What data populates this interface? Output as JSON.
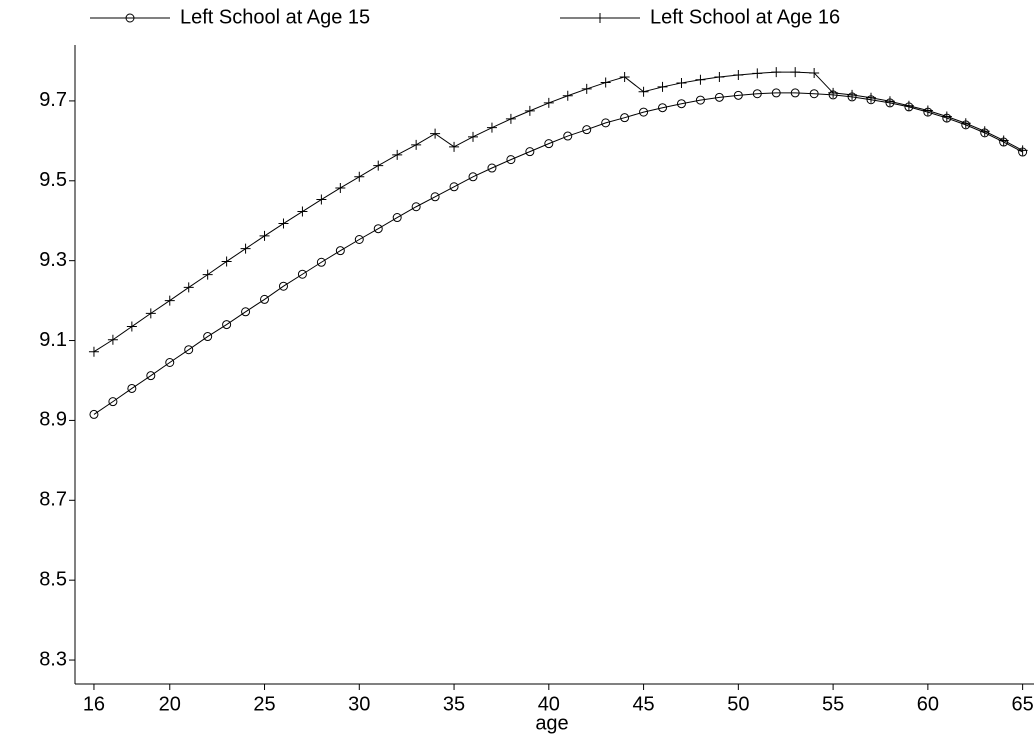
{
  "chart_data": {
    "type": "line",
    "xlabel": "age",
    "x": [
      16,
      17,
      18,
      19,
      20,
      21,
      22,
      23,
      24,
      25,
      26,
      27,
      28,
      29,
      30,
      31,
      32,
      33,
      34,
      35,
      36,
      37,
      38,
      39,
      40,
      41,
      42,
      43,
      44,
      45,
      46,
      47,
      48,
      49,
      50,
      51,
      52,
      53,
      54,
      55,
      56,
      57,
      58,
      59,
      60,
      61,
      62,
      63,
      64,
      65
    ],
    "series": [
      {
        "name": "Left School at Age 15",
        "color": "#000000",
        "marker": "circle",
        "values": [
          8.915,
          8.947,
          8.98,
          9.012,
          9.045,
          9.077,
          9.11,
          9.14,
          9.172,
          9.203,
          9.236,
          9.266,
          9.296,
          9.325,
          9.353,
          9.38,
          9.408,
          9.435,
          9.46,
          9.485,
          9.51,
          9.532,
          9.553,
          9.573,
          9.593,
          9.612,
          9.628,
          9.645,
          9.658,
          9.672,
          9.683,
          9.693,
          9.702,
          9.709,
          9.714,
          9.718,
          9.72,
          9.72,
          9.718,
          9.715,
          9.71,
          9.703,
          9.695,
          9.685,
          9.672,
          9.657,
          9.64,
          9.62,
          9.597,
          9.572
        ]
      },
      {
        "name": "Left School at Age 16",
        "color": "#000000",
        "marker": "plus",
        "values": [
          9.072,
          9.102,
          9.135,
          9.168,
          9.2,
          9.233,
          9.265,
          9.298,
          9.33,
          9.362,
          9.393,
          9.423,
          9.453,
          9.482,
          9.51,
          9.538,
          9.565,
          9.59,
          9.618,
          9.585,
          9.61,
          9.633,
          9.655,
          9.675,
          9.695,
          9.713,
          9.73,
          9.746,
          9.76,
          9.723,
          9.735,
          9.745,
          9.753,
          9.76,
          9.765,
          9.769,
          9.772,
          9.772,
          9.77,
          9.72,
          9.715,
          9.708,
          9.699,
          9.688,
          9.676,
          9.661,
          9.644,
          9.624,
          9.601,
          9.576
        ]
      }
    ],
    "xlim": [
      15,
      65.6
    ],
    "xticks": [
      16,
      20,
      25,
      30,
      35,
      40,
      45,
      50,
      55,
      60,
      65
    ],
    "ylim": [
      8.24,
      9.84
    ],
    "yticks": [
      8.3,
      8.5,
      8.7,
      8.9,
      9.1,
      9.3,
      9.5,
      9.7
    ],
    "legend": "top",
    "grid": false
  }
}
